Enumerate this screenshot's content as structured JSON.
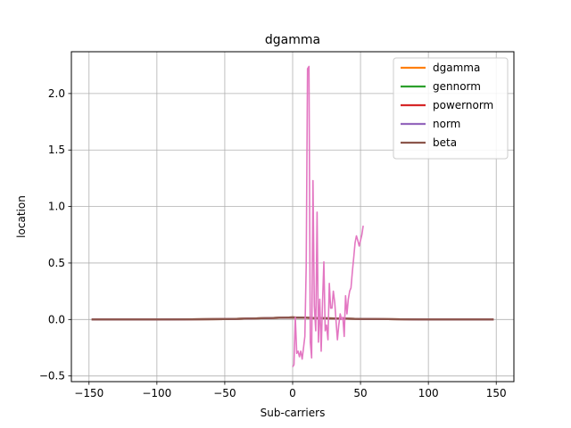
{
  "chart_data": {
    "type": "line",
    "title": "dgamma",
    "xlabel": "Sub-carriers",
    "ylabel": "location",
    "xlim": [
      -163,
      163
    ],
    "ylim": [
      -0.55,
      2.37
    ],
    "grid": true,
    "legend_position": "top-right",
    "x_ticks": [
      -150,
      -100,
      -50,
      0,
      50,
      100,
      150
    ],
    "x_tick_labels": [
      "−150",
      "−100",
      "−50",
      "0",
      "50",
      "100",
      "150"
    ],
    "y_ticks": [
      -0.5,
      0.0,
      0.5,
      1.0,
      1.5,
      2.0
    ],
    "y_tick_labels": [
      "−0.5",
      "0.0",
      "0.5",
      "1.0",
      "1.5",
      "2.0"
    ],
    "series": [
      {
        "name": "dgamma",
        "color": "#ff7f0e",
        "in_legend": true,
        "x": [
          -148,
          -100,
          -50,
          -20,
          0,
          20,
          50,
          100,
          148
        ],
        "y": [
          0.0,
          0.0,
          0.003,
          0.012,
          0.018,
          0.012,
          0.005,
          0.0,
          0.0
        ]
      },
      {
        "name": "gennorm",
        "color": "#2ca02c",
        "in_legend": true,
        "x": [
          -148,
          -100,
          -50,
          -20,
          0,
          20,
          50,
          100,
          148
        ],
        "y": [
          0.0,
          0.0,
          0.003,
          0.012,
          0.018,
          0.012,
          0.005,
          0.0,
          0.0
        ]
      },
      {
        "name": "powernorm",
        "color": "#d62728",
        "in_legend": true,
        "x": [
          -148,
          -100,
          -50,
          -20,
          0,
          20,
          50,
          100,
          148
        ],
        "y": [
          0.0,
          0.0,
          0.003,
          0.012,
          0.018,
          0.012,
          0.005,
          0.0,
          0.0
        ]
      },
      {
        "name": "norm",
        "color": "#9467bd",
        "in_legend": true,
        "x": [
          -148,
          -100,
          -50,
          -20,
          0,
          20,
          50,
          100,
          148
        ],
        "y": [
          0.0,
          0.0,
          0.003,
          0.012,
          0.018,
          0.012,
          0.005,
          0.0,
          0.0
        ]
      },
      {
        "name": "beta",
        "color": "#8c564b",
        "in_legend": true,
        "x": [
          -148,
          -100,
          -50,
          -20,
          0,
          20,
          50,
          100,
          148
        ],
        "y": [
          0.0,
          0.0,
          0.003,
          0.012,
          0.018,
          0.012,
          0.005,
          0.0,
          0.0
        ]
      },
      {
        "name": "",
        "color": "#e377c2",
        "in_legend": false,
        "x": [
          0,
          1,
          2,
          3,
          4,
          5,
          6,
          7,
          8,
          9,
          10,
          11,
          12,
          13,
          14,
          15,
          16,
          17,
          18,
          19,
          20,
          21,
          22,
          23,
          24,
          25,
          26,
          27,
          28,
          29,
          30,
          31,
          32,
          33,
          34,
          35,
          36,
          37,
          38,
          39,
          40,
          41,
          42,
          43,
          44,
          45,
          46,
          47,
          48,
          49,
          50,
          51,
          52
        ],
        "y": [
          -0.42,
          -0.4,
          0.02,
          -0.3,
          -0.28,
          -0.33,
          -0.28,
          -0.35,
          -0.25,
          -0.15,
          0.47,
          2.22,
          2.24,
          -0.2,
          -0.34,
          1.23,
          0.12,
          -0.1,
          0.95,
          -0.2,
          0.18,
          -0.28,
          0.15,
          0.51,
          -0.1,
          -0.05,
          -0.18,
          0.32,
          0.1,
          0.1,
          0.25,
          0.15,
          -0.02,
          -0.18,
          -0.05,
          0.05,
          0.0,
          0.02,
          -0.15,
          0.21,
          0.05,
          0.18,
          0.25,
          0.28,
          0.42,
          0.55,
          0.68,
          0.74,
          0.7,
          0.65,
          0.7,
          0.75,
          0.83
        ]
      }
    ]
  }
}
